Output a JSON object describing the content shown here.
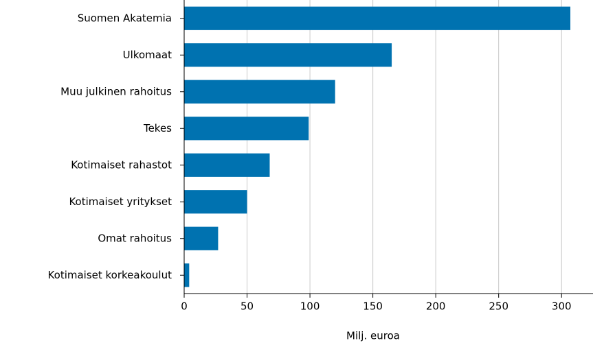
{
  "chart_data": {
    "type": "bar",
    "orientation": "horizontal",
    "x_label": "Milj. euroa",
    "categories": [
      "Suomen Akatemia",
      "Ulkomaat",
      "Muu julkinen rahoitus",
      "Tekes",
      "Kotimaiset rahastot",
      "Kotimaiset yritykset",
      "Omat rahoitus",
      "Kotimaiset korkeakoulut"
    ],
    "values": [
      307,
      165,
      120,
      99,
      68,
      50,
      27,
      4
    ],
    "color": "#0072b0",
    "xlim": [
      0,
      325
    ],
    "xticks": [
      0,
      50,
      100,
      150,
      200,
      250,
      300
    ],
    "grid": true
  }
}
